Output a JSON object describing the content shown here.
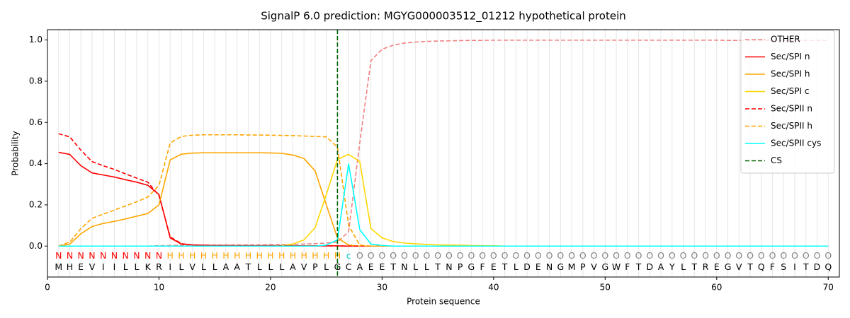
{
  "chart_data": {
    "type": "line",
    "title": "SignalP 6.0 prediction: MGYG000003512_01212 hypothetical protein",
    "x_label": "Protein sequence",
    "y_label": "Probability",
    "xlim": [
      0,
      71
    ],
    "ylim": [
      -0.15,
      1.05
    ],
    "xticks": [
      0,
      10,
      20,
      30,
      40,
      50,
      60,
      70
    ],
    "yticks": [
      {
        "value": 0,
        "label": "0.0"
      },
      {
        "value": 0.2,
        "label": "0.2"
      },
      {
        "value": 0.4,
        "label": "0.4"
      },
      {
        "value": 0.6,
        "label": "0.6"
      },
      {
        "value": 0.8,
        "label": "0.8"
      },
      {
        "value": 1,
        "label": "1.0"
      }
    ],
    "grid": true,
    "legend": "upper right",
    "x": [
      1,
      2,
      3,
      4,
      5,
      6,
      7,
      8,
      9,
      10,
      11,
      12,
      13,
      14,
      15,
      16,
      17,
      18,
      19,
      20,
      21,
      22,
      23,
      24,
      25,
      26,
      27,
      28,
      29,
      30,
      31,
      32,
      33,
      34,
      35,
      36,
      37,
      38,
      39,
      40,
      41,
      42,
      43,
      44,
      45,
      46,
      47,
      48,
      49,
      50,
      51,
      52,
      53,
      54,
      55,
      56,
      57,
      58,
      59,
      60,
      61,
      62,
      63,
      64,
      65,
      66,
      67,
      68,
      69,
      70
    ],
    "residues": [
      "M",
      "H",
      "E",
      "V",
      "I",
      "I",
      "L",
      "L",
      "K",
      "R",
      "I",
      "L",
      "V",
      "L",
      "L",
      "A",
      "A",
      "T",
      "L",
      "L",
      "L",
      "A",
      "V",
      "P",
      "L",
      "G",
      "C",
      "A",
      "E",
      "E",
      "T",
      "N",
      "L",
      "L",
      "T",
      "N",
      "P",
      "G",
      "F",
      "E",
      "T",
      "L",
      "D",
      "E",
      "N",
      "G",
      "M",
      "P",
      "V",
      "G",
      "W",
      "F",
      "T",
      "D",
      "A",
      "Y",
      "L",
      "T",
      "R",
      "E",
      "G",
      "V",
      "T",
      "Q",
      "F",
      "S",
      "I",
      "T",
      "D",
      "Q"
    ],
    "regions": [
      "N",
      "N",
      "N",
      "N",
      "N",
      "N",
      "N",
      "N",
      "N",
      "N",
      "H",
      "H",
      "H",
      "H",
      "H",
      "H",
      "H",
      "H",
      "H",
      "H",
      "H",
      "H",
      "H",
      "H",
      "H",
      "H",
      "c",
      "O",
      "O",
      "O",
      "O",
      "O",
      "O",
      "O",
      "O",
      "O",
      "O",
      "O",
      "O",
      "O",
      "O",
      "O",
      "O",
      "O",
      "O",
      "O",
      "O",
      "O",
      "O",
      "O",
      "O",
      "O",
      "O",
      "O",
      "O",
      "O",
      "O",
      "O",
      "O",
      "O",
      "O",
      "O",
      "O",
      "O",
      "O",
      "O",
      "O",
      "O",
      "O",
      "O"
    ],
    "region_colors": {
      "N": "#ff0000",
      "H": "#ffa500",
      "c": "#00cccc",
      "O": "#808080"
    },
    "series": [
      {
        "name": "OTHER",
        "color": "#f08080",
        "linestyle": "dashed",
        "values": [
          0,
          0,
          0,
          0,
          0,
          0,
          0,
          0,
          0,
          0.002,
          0.003,
          0.004,
          0.004,
          0.005,
          0.005,
          0.005,
          0.006,
          0.006,
          0.006,
          0.007,
          0.007,
          0.008,
          0.01,
          0.012,
          0.015,
          0.02,
          0.07,
          0.5,
          0.9,
          0.955,
          0.975,
          0.985,
          0.99,
          0.993,
          0.995,
          0.996,
          0.997,
          0.998,
          0.998,
          0.999,
          0.999,
          0.999,
          0.999,
          0.999,
          0.999,
          0.999,
          0.999,
          0.999,
          0.999,
          0.999,
          0.999,
          0.999,
          0.999,
          0.999,
          0.999,
          0.999,
          0.999,
          0.999,
          0.999,
          0.999,
          0.998,
          0.998,
          0.998,
          0.998,
          0.998,
          0.998,
          0.998,
          0.998,
          0.998,
          0.998
        ]
      },
      {
        "name": "Sec/SPI n",
        "color": "#ff0000",
        "linestyle": "solid",
        "values": [
          0.455,
          0.445,
          0.39,
          0.355,
          0.345,
          0.335,
          0.322,
          0.31,
          0.295,
          0.25,
          0.04,
          0.01,
          0.006,
          0.004,
          0.003,
          0.003,
          0.002,
          0.002,
          0.002,
          0.002,
          0.002,
          0.002,
          0.001,
          0.001,
          0.001,
          0.001,
          0,
          0,
          0,
          0,
          0,
          0,
          0,
          0,
          0,
          0,
          0,
          0,
          0,
          0,
          0,
          0,
          0,
          0,
          0,
          0,
          0,
          0,
          0,
          0,
          0,
          0,
          0,
          0,
          0,
          0,
          0,
          0,
          0,
          0,
          0,
          0,
          0,
          0,
          0,
          0,
          0,
          0,
          0,
          0
        ]
      },
      {
        "name": "Sec/SPI h",
        "color": "#ffa500",
        "linestyle": "solid",
        "values": [
          0,
          0.01,
          0.06,
          0.095,
          0.11,
          0.12,
          0.132,
          0.145,
          0.158,
          0.2,
          0.418,
          0.446,
          0.451,
          0.453,
          0.453,
          0.453,
          0.453,
          0.453,
          0.453,
          0.452,
          0.45,
          0.442,
          0.425,
          0.365,
          0.2,
          0.04,
          0.005,
          0,
          0,
          0,
          0,
          0,
          0,
          0,
          0,
          0,
          0,
          0,
          0,
          0,
          0,
          0,
          0,
          0,
          0,
          0,
          0,
          0,
          0,
          0,
          0,
          0,
          0,
          0,
          0,
          0,
          0,
          0,
          0,
          0,
          0,
          0,
          0,
          0,
          0,
          0,
          0,
          0,
          0,
          0
        ]
      },
      {
        "name": "Sec/SPI c",
        "color": "#ffd700",
        "linestyle": "solid",
        "values": [
          0,
          0,
          0,
          0,
          0,
          0,
          0,
          0,
          0,
          0,
          0,
          0,
          0,
          0,
          0,
          0,
          0,
          0,
          0,
          0,
          0.002,
          0.01,
          0.03,
          0.09,
          0.25,
          0.42,
          0.445,
          0.41,
          0.085,
          0.04,
          0.022,
          0.015,
          0.011,
          0.008,
          0.006,
          0.005,
          0.004,
          0.003,
          0.002,
          0.002,
          0,
          0,
          0,
          0,
          0,
          0,
          0,
          0,
          0,
          0,
          0,
          0,
          0,
          0,
          0,
          0,
          0,
          0,
          0,
          0,
          0,
          0,
          0,
          0,
          0,
          0,
          0,
          0,
          0,
          0
        ]
      },
      {
        "name": "Sec/SPII n",
        "color": "#ff0000",
        "linestyle": "dashed",
        "values": [
          0.545,
          0.53,
          0.465,
          0.41,
          0.39,
          0.372,
          0.35,
          0.33,
          0.31,
          0.245,
          0.045,
          0.012,
          0.006,
          0.004,
          0.003,
          0.003,
          0.002,
          0.002,
          0.002,
          0.002,
          0.002,
          0.002,
          0.001,
          0.001,
          0.001,
          0.001,
          0,
          0,
          0,
          0,
          0,
          0,
          0,
          0,
          0,
          0,
          0,
          0,
          0,
          0,
          0,
          0,
          0,
          0,
          0,
          0,
          0,
          0,
          0,
          0,
          0,
          0,
          0,
          0,
          0,
          0,
          0,
          0,
          0,
          0,
          0,
          0,
          0,
          0,
          0,
          0,
          0,
          0,
          0,
          0
        ]
      },
      {
        "name": "Sec/SPII h",
        "color": "#ffa500",
        "linestyle": "dashed",
        "values": [
          0,
          0.02,
          0.085,
          0.135,
          0.155,
          0.175,
          0.195,
          0.215,
          0.238,
          0.295,
          0.5,
          0.532,
          0.538,
          0.54,
          0.54,
          0.54,
          0.54,
          0.539,
          0.539,
          0.538,
          0.537,
          0.536,
          0.534,
          0.532,
          0.53,
          0.48,
          0.1,
          0.005,
          0,
          0,
          0,
          0,
          0,
          0,
          0,
          0,
          0,
          0,
          0,
          0,
          0,
          0,
          0,
          0,
          0,
          0,
          0,
          0,
          0,
          0,
          0,
          0,
          0,
          0,
          0,
          0,
          0,
          0,
          0,
          0,
          0,
          0,
          0,
          0,
          0,
          0,
          0,
          0,
          0,
          0
        ]
      },
      {
        "name": "Sec/SPII cys",
        "color": "#00ffff",
        "linestyle": "solid",
        "values": [
          0,
          0,
          0,
          0,
          0,
          0,
          0,
          0,
          0,
          0,
          0,
          0,
          0,
          0,
          0,
          0,
          0,
          0,
          0,
          0,
          0,
          0,
          0,
          0,
          0.005,
          0.03,
          0.4,
          0.08,
          0.01,
          0.003,
          0,
          0,
          0,
          0,
          0,
          0,
          0,
          0,
          0,
          0,
          0,
          0,
          0,
          0,
          0,
          0,
          0,
          0,
          0,
          0,
          0,
          0,
          0,
          0,
          0,
          0,
          0,
          0,
          0,
          0,
          0,
          0,
          0,
          0,
          0,
          0,
          0,
          0,
          0,
          0
        ]
      }
    ],
    "cs": {
      "name": "CS",
      "x": 26,
      "color": "#006400"
    }
  }
}
